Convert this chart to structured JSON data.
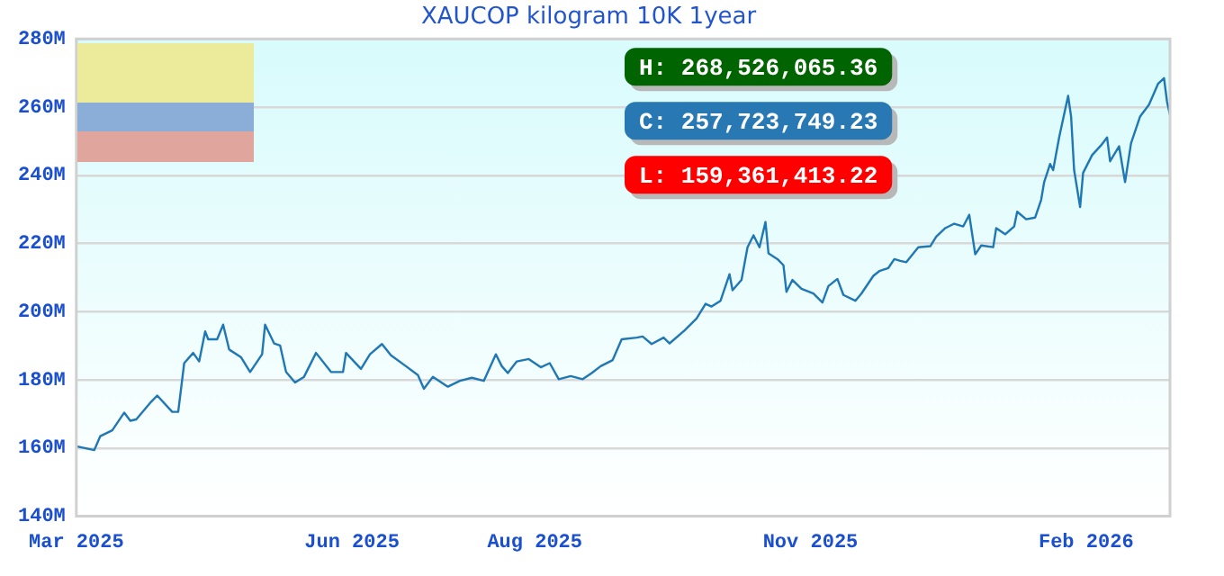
{
  "chart_data": {
    "type": "line",
    "title": "XAUCOP kilogram 10K 1year",
    "annotations": [
      "H: 268,526,065.36",
      "C: 257,723,749.23",
      "L: 159,361,413.22"
    ],
    "xlim": [
      "2025-03-01",
      "2026-03-01"
    ],
    "xticks": [
      {
        "value": "2025-03-01",
        "label": "Mar 2025"
      },
      {
        "value": "2025-06-01",
        "label": "Jun 2025"
      },
      {
        "value": "2025-08-01",
        "label": "Aug 2025"
      },
      {
        "value": "2025-11-01",
        "label": "Nov 2025"
      },
      {
        "value": "2026-02-01",
        "label": "Feb 2026"
      }
    ],
    "ylim": [
      140,
      280
    ],
    "yticks": [
      {
        "value": 140,
        "label": "140M"
      },
      {
        "value": 160,
        "label": "160M"
      },
      {
        "value": 180,
        "label": "180M"
      },
      {
        "value": 200,
        "label": "200M"
      },
      {
        "value": 220,
        "label": "220M"
      },
      {
        "value": 240,
        "label": "240M"
      },
      {
        "value": 260,
        "label": "260M"
      },
      {
        "value": 280,
        "label": "280M"
      }
    ],
    "grid": "y",
    "legend": false,
    "marker": "none",
    "line_style": "solid",
    "series": [
      {
        "color": "#1f77b4",
        "x": [
          "2025-03-01",
          "2025-03-07",
          "2025-03-09",
          "2025-03-13",
          "2025-03-17",
          "2025-03-19",
          "2025-03-21",
          "2025-03-26",
          "2025-03-28",
          "2025-04-02",
          "2025-04-04",
          "2025-04-06",
          "2025-04-09",
          "2025-04-11",
          "2025-04-13",
          "2025-04-14",
          "2025-04-17",
          "2025-04-19",
          "2025-04-21",
          "2025-04-25",
          "2025-04-28",
          "2025-05-02",
          "2025-05-03",
          "2025-05-06",
          "2025-05-08",
          "2025-05-10",
          "2025-05-13",
          "2025-05-16",
          "2025-05-20",
          "2025-05-25",
          "2025-05-29",
          "2025-05-30",
          "2025-06-04",
          "2025-06-07",
          "2025-06-11",
          "2025-06-14",
          "2025-06-19",
          "2025-06-23",
          "2025-06-25",
          "2025-06-28",
          "2025-07-03",
          "2025-07-07",
          "2025-07-11",
          "2025-07-15",
          "2025-07-19",
          "2025-07-21",
          "2025-07-23",
          "2025-07-26",
          "2025-07-30",
          "2025-08-03",
          "2025-08-06",
          "2025-08-09",
          "2025-08-13",
          "2025-08-17",
          "2025-08-20",
          "2025-08-23",
          "2025-08-27",
          "2025-08-30",
          "2025-09-04",
          "2025-09-06",
          "2025-09-09",
          "2025-09-13",
          "2025-09-15",
          "2025-09-20",
          "2025-09-24",
          "2025-09-27",
          "2025-09-29",
          "2025-10-02",
          "2025-10-05",
          "2025-10-06",
          "2025-10-09",
          "2025-10-11",
          "2025-10-13",
          "2025-10-15",
          "2025-10-17",
          "2025-10-18",
          "2025-10-21",
          "2025-10-23",
          "2025-10-24",
          "2025-10-26",
          "2025-10-29",
          "2025-11-02",
          "2025-11-05",
          "2025-11-07",
          "2025-11-10",
          "2025-11-12",
          "2025-11-16",
          "2025-11-18",
          "2025-11-22",
          "2025-11-24",
          "2025-11-27",
          "2025-11-29",
          "2025-12-01",
          "2025-12-03",
          "2025-12-07",
          "2025-12-11",
          "2025-12-13",
          "2025-12-16",
          "2025-12-19",
          "2025-12-22",
          "2025-12-24",
          "2025-12-26",
          "2025-12-28",
          "2026-01-01",
          "2026-01-02",
          "2026-01-05",
          "2026-01-08",
          "2026-01-09",
          "2026-01-12",
          "2026-01-15",
          "2026-01-17",
          "2026-01-18",
          "2026-01-20",
          "2026-01-21",
          "2026-01-23",
          "2026-01-26",
          "2026-01-27",
          "2026-01-28",
          "2026-01-30",
          "2026-01-31",
          "2026-02-03",
          "2026-02-06",
          "2026-02-08",
          "2026-02-09",
          "2026-02-12",
          "2026-02-14",
          "2026-02-16",
          "2026-02-19",
          "2026-02-22",
          "2026-02-25",
          "2026-02-27",
          "2026-02-28",
          "2026-03-01"
        ],
        "values": [
          160.5,
          159.4,
          163.5,
          165.2,
          170.4,
          168,
          168.4,
          173.6,
          175.4,
          170.6,
          170.6,
          184.9,
          187.9,
          185.4,
          194.2,
          191.9,
          191.9,
          196.2,
          188.9,
          186.6,
          182.3,
          187.5,
          196.2,
          190.7,
          190.1,
          182.3,
          179.2,
          180.9,
          187.9,
          182.3,
          182.3,
          187.9,
          183.2,
          187.5,
          190.5,
          187.2,
          184,
          181.4,
          177.4,
          180.9,
          178,
          179.7,
          180.6,
          179.7,
          187.5,
          184,
          182,
          185.4,
          186.1,
          183.7,
          184.9,
          180.2,
          181.1,
          180.2,
          182,
          184,
          185.8,
          191.9,
          192.4,
          192.7,
          190.5,
          192.4,
          190.7,
          194.5,
          198,
          202.3,
          201.5,
          203.2,
          211,
          206.3,
          209.3,
          218.9,
          222.4,
          218.9,
          226.3,
          217.1,
          215.4,
          213.6,
          205.8,
          209.3,
          206.7,
          205.3,
          202.7,
          207.5,
          209.6,
          204.9,
          203.2,
          205.3,
          210.5,
          211.9,
          212.8,
          215.4,
          214.9,
          214.5,
          218.9,
          219.2,
          222,
          224.5,
          225.8,
          225,
          228.4,
          216.8,
          219.4,
          218.9,
          224.5,
          222.7,
          225,
          229.3,
          227.1,
          227.6,
          232.8,
          238,
          243.3,
          241.5,
          251.1,
          263.3,
          257.2,
          241.5,
          230.7,
          240.7,
          245.9,
          248.8,
          251.1,
          244.1,
          248.5,
          238,
          249.4,
          257.2,
          260.7,
          266.8,
          268.5,
          261.6,
          257.7
        ]
      }
    ]
  }
}
